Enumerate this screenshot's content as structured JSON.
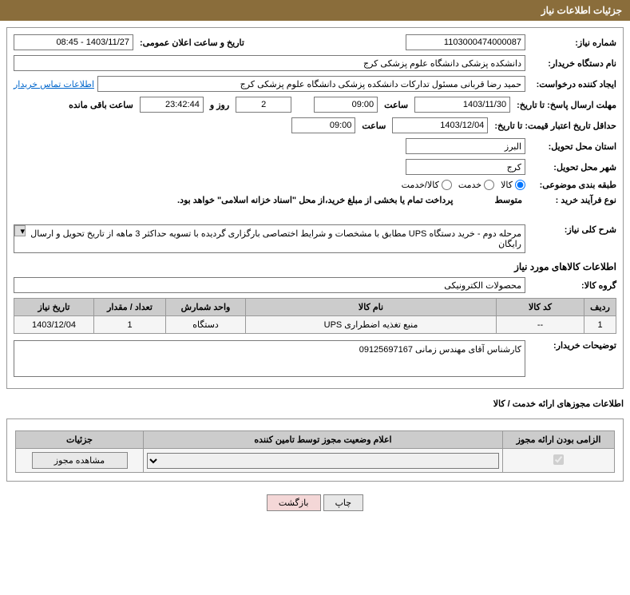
{
  "header": {
    "title": "جزئیات اطلاعات نیاز"
  },
  "need": {
    "number_label": "شماره نیاز:",
    "number": "1103000474000087",
    "announce_label": "تاریخ و ساعت اعلان عمومی:",
    "announce": "1403/11/27 - 08:45",
    "buyer_label": "نام دستگاه خریدار:",
    "buyer": "دانشکده پزشکی دانشگاه علوم پزشکی کرج",
    "requester_label": "ایجاد کننده درخواست:",
    "requester": "حمید رضا قربانی مسئول تدارکات دانشکده پزشکی دانشگاه علوم پزشکی کرج",
    "contact_link": "اطلاعات تماس خریدار",
    "deadline_label": "مهلت ارسال پاسخ: تا تاریخ:",
    "deadline_date": "1403/11/30",
    "saat": "ساعت",
    "deadline_time": "09:00",
    "days_value": "2",
    "rooz_va": "روز و",
    "countdown": "23:42:44",
    "remaining": "ساعت باقی مانده",
    "validity_label": "حداقل تاریخ اعتبار قیمت: تا تاریخ:",
    "validity_date": "1403/12/04",
    "validity_time": "09:00",
    "province_label": "استان محل تحویل:",
    "province": "البرز",
    "city_label": "شهر محل تحویل:",
    "city": "کرج",
    "category_label": "طبقه بندی موضوعی:",
    "cat_kala": "کالا",
    "cat_khedmat": "خدمت",
    "cat_both": "کالا/خدمت",
    "process_label": "نوع فرآیند خرید :",
    "process_value": "متوسط",
    "payment_note": "پرداخت تمام یا بخشی از مبلغ خرید،از محل \"اسناد خزانه اسلامی\" خواهد بود."
  },
  "description": {
    "label": "شرح کلی نیاز:",
    "text": "مرحله دوم - خرید دستگاه UPS مطابق با مشخصات و شرایط اختصاصی بارگزاری گردیده با تسویه حداکثر 3 ماهه از تاریخ تحویل و ارسال رایگان"
  },
  "goods": {
    "section_title": "اطلاعات کالاهای مورد نیاز",
    "group_label": "گروه کالا:",
    "group": "محصولات الکترونیکی",
    "headers": {
      "row": "ردیف",
      "code": "کد کالا",
      "name": "نام کالا",
      "unit": "واحد شمارش",
      "qty": "تعداد / مقدار",
      "date": "تاریخ نیاز"
    },
    "rows": [
      {
        "n": "1",
        "code": "--",
        "name": "منبع تغذیه اضطراری UPS",
        "unit": "دستگاه",
        "qty": "1",
        "date": "1403/12/04"
      }
    ]
  },
  "notes": {
    "label": "توضیحات خریدار:",
    "text": "کارشناس آقای مهندس زمانی 09125697167"
  },
  "license": {
    "section_title": "اطلاعات مجوزهای ارائه خدمت / کالا",
    "headers": {
      "mandatory": "الزامی بودن ارائه مجوز",
      "status": "اعلام وضعیت مجوز توسط تامین کننده",
      "details": "جزئیات"
    },
    "view_btn": "مشاهده مجوز"
  },
  "buttons": {
    "print": "چاپ",
    "return": "بازگشت"
  }
}
